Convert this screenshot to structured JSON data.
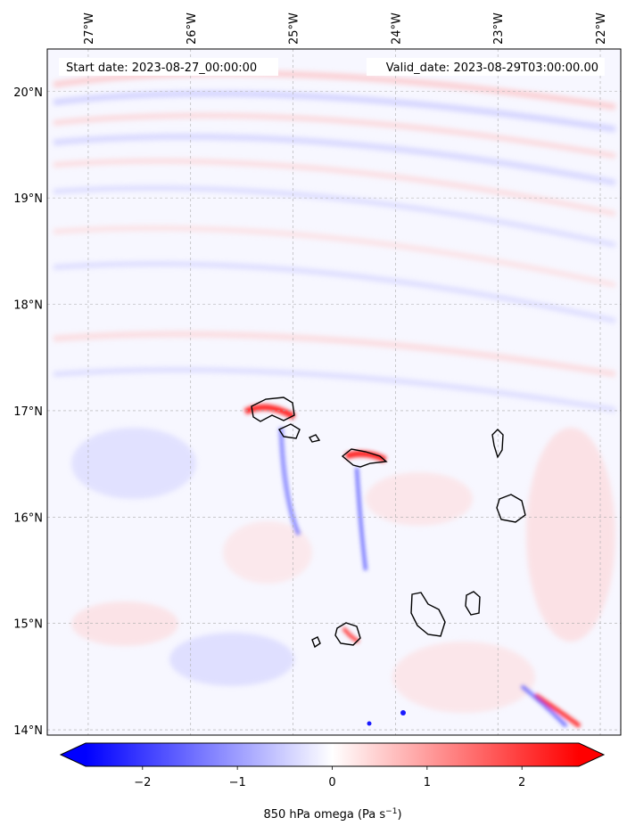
{
  "header": {
    "start_label": "Start date: 2023-08-27_00:00:00",
    "valid_label": "Valid_date: 2023-08-29T03:00:00.00"
  },
  "map": {
    "projection": "PlateCarree",
    "lon_range": [
      -27.4,
      -21.8
    ],
    "lat_range": [
      13.95,
      20.4
    ],
    "grid": true,
    "coastline_color": "#000000",
    "lon_ticks": [
      {
        "value": -27,
        "label": "27°W"
      },
      {
        "value": -26,
        "label": "26°W"
      },
      {
        "value": -25,
        "label": "25°W"
      },
      {
        "value": -24,
        "label": "24°W"
      },
      {
        "value": -23,
        "label": "23°W"
      },
      {
        "value": -22,
        "label": "22°W"
      }
    ],
    "lat_ticks": [
      {
        "value": 20,
        "label": "20°N"
      },
      {
        "value": 19,
        "label": "19°N"
      },
      {
        "value": 18,
        "label": "18°N"
      },
      {
        "value": 17,
        "label": "17°N"
      },
      {
        "value": 16,
        "label": "16°N"
      },
      {
        "value": 15,
        "label": "15°N"
      },
      {
        "value": 14,
        "label": "14°N"
      }
    ]
  },
  "colorbar": {
    "label_text": "850 hPa omega (Pa s",
    "label_exp": "−1",
    "label_close": ")",
    "min": -2.6,
    "max": 2.6,
    "extend": "both",
    "cmap": "bwr",
    "colors": {
      "low": "#0000ff",
      "mid": "#ffffff",
      "high": "#ff0000"
    },
    "ticks": [
      {
        "value": -2,
        "label": "−2"
      },
      {
        "value": -1,
        "label": "−1"
      },
      {
        "value": 0,
        "label": "0"
      },
      {
        "value": 1,
        "label": "1"
      },
      {
        "value": 2,
        "label": "2"
      }
    ]
  }
}
